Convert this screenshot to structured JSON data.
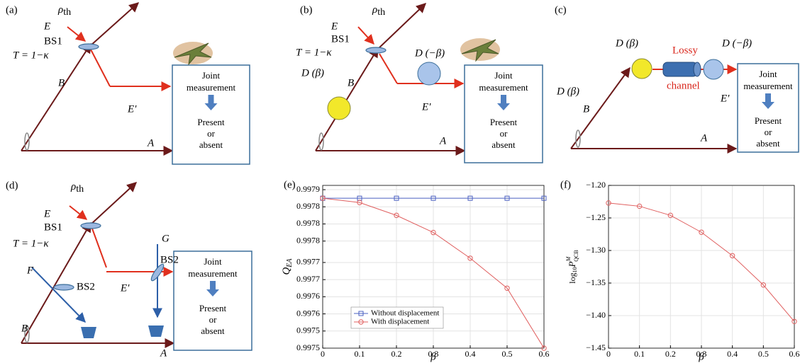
{
  "diagrams": {
    "a": {
      "label": "(a)",
      "rho": "ρ",
      "rho_sub": "th",
      "E": "E",
      "BS1": "BS1",
      "T": "T = 1−κ",
      "B": "B",
      "E_prime": "E′",
      "A": "A",
      "box": [
        "Joint",
        "measurement",
        "Present",
        "or",
        "absent"
      ]
    },
    "b": {
      "label": "(b)",
      "rho": "ρ",
      "rho_sub": "th",
      "E": "E",
      "BS1": "BS1",
      "T": "T = 1−κ",
      "D_beta": "D (β)",
      "B": "B",
      "D_minus_beta": "D (−β)",
      "E_prime": "E′",
      "A": "A",
      "box": [
        "Joint",
        "measurement",
        "Present",
        "or",
        "absent"
      ]
    },
    "c": {
      "label": "(c)",
      "D_beta_top": "D (β)",
      "D_beta_left": "D (β)",
      "Lossy": "Lossy",
      "channel": "channel",
      "D_minus_beta": "D (−β)",
      "B": "B",
      "E_prime": "E′",
      "A": "A",
      "box": [
        "Joint",
        "measurement",
        "Present",
        "or",
        "absent"
      ]
    },
    "d": {
      "label": "(d)",
      "rho": "ρ",
      "rho_sub": "th",
      "E": "E",
      "BS1": "BS1",
      "T": "T = 1−κ",
      "F": "F",
      "BS2_left": "BS2",
      "G": "G",
      "BS2_right": "BS2",
      "E_prime": "E′",
      "B": "B",
      "A": "A",
      "box": [
        "Joint",
        "measurement",
        "Present",
        "or",
        "absent"
      ]
    }
  },
  "chart_data": [
    {
      "type": "line",
      "panel_label": "(e)",
      "xlabel": "β",
      "ylabel": "Q",
      "ylabel_sub": "EA",
      "x": [
        0,
        0.1,
        0.2,
        0.3,
        0.4,
        0.5,
        0.6
      ],
      "xlim": [
        0,
        0.6
      ],
      "xticks": [
        0,
        0.1,
        0.2,
        0.3,
        0.4,
        0.5,
        0.6
      ],
      "ylim": [
        0.9975,
        0.99788
      ],
      "yticks": [
        0.9975,
        {
          "value": 0.99754,
          "label": "0.9975"
        },
        {
          "value": 0.99758,
          "label": "0.9976"
        },
        {
          "value": 0.99762,
          "label": "0.9976"
        },
        {
          "value": 0.99766,
          "label": "0.9977"
        },
        0.9977,
        {
          "value": 0.99775,
          "label": "0.9978"
        },
        {
          "value": 0.99779,
          "label": "0.9978"
        },
        {
          "value": 0.99783,
          "label": "0.9978"
        },
        {
          "value": 0.99787,
          "label": "0.9979"
        }
      ],
      "grid": true,
      "legend": "lower left",
      "series": [
        {
          "name": "Without displacement",
          "color": "#4a5fc1",
          "marker": "square",
          "values": [
            0.99785,
            0.99785,
            0.99785,
            0.99785,
            0.99785,
            0.99785,
            0.99785
          ]
        },
        {
          "name": "With displacement",
          "color": "#e06060",
          "marker": "circle",
          "values": [
            0.99785,
            0.99784,
            0.99781,
            0.99777,
            0.99771,
            0.99764,
            0.9975
          ]
        }
      ]
    },
    {
      "type": "line",
      "panel_label": "(f)",
      "xlabel": "β",
      "ylabel": [
        "log",
        "10",
        "P",
        "M",
        "QCB"
      ],
      "x": [
        0,
        0.1,
        0.2,
        0.3,
        0.4,
        0.5,
        0.6
      ],
      "xlim": [
        0,
        0.6
      ],
      "xticks": [
        0,
        0.1,
        0.2,
        0.3,
        0.4,
        0.5,
        0.6
      ],
      "ylim": [
        -1.45,
        -1.2
      ],
      "yticks": [
        {
          "value": -1.45,
          "label": "−1.45"
        },
        {
          "value": -1.4,
          "label": "−1.40"
        },
        {
          "value": -1.35,
          "label": "−1.35"
        },
        {
          "value": -1.3,
          "label": "−1.30"
        },
        {
          "value": -1.25,
          "label": "−1.25"
        },
        {
          "value": -1.2,
          "label": "−1.20"
        }
      ],
      "grid": true,
      "series": [
        {
          "color": "#e06060",
          "marker": "circle",
          "values": [
            -1.227,
            -1.232,
            -1.246,
            -1.272,
            -1.308,
            -1.353,
            -1.409
          ]
        }
      ]
    }
  ]
}
